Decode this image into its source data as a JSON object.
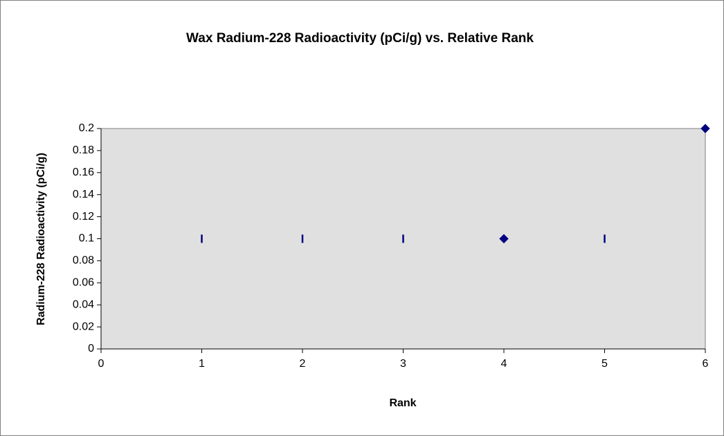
{
  "chart_data": {
    "type": "scatter",
    "title": "Wax Radium-228 Radioactivity (pCi/g) vs. Relative Rank",
    "xlabel": "Rank",
    "ylabel": "Radium-228 Radioactivity (pCi/g)",
    "series": [
      {
        "color": "#000080",
        "marker": "dash",
        "x": [
          1,
          2,
          3,
          5
        ],
        "values": [
          0.1,
          0.1,
          0.1,
          0.1
        ]
      },
      {
        "color": "#000080",
        "marker": "diamond",
        "x": [
          4,
          6
        ],
        "values": [
          0.1,
          0.2
        ]
      }
    ],
    "xlim": [
      0,
      6
    ],
    "xticks": [
      0,
      1,
      2,
      3,
      4,
      5,
      6
    ],
    "ylim": [
      0,
      0.2
    ],
    "yticks": [
      0,
      0.02,
      0.04,
      0.06,
      0.08,
      0.1,
      0.12,
      0.14,
      0.16,
      0.18,
      0.2
    ],
    "grid": false,
    "plot_background": "#e0e0e0"
  }
}
